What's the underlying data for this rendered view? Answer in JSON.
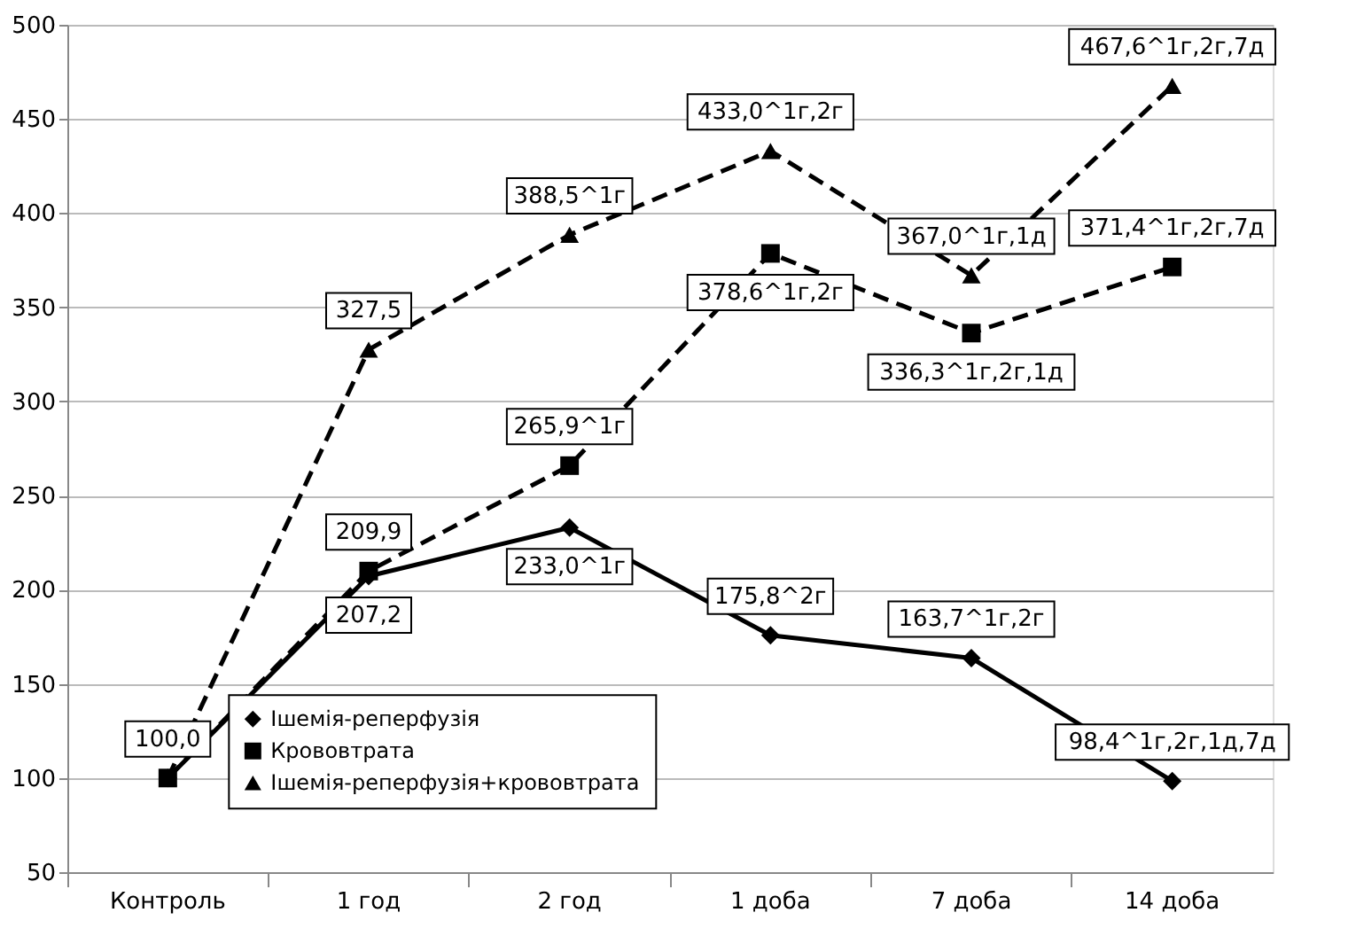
{
  "chart_data": {
    "type": "line",
    "categories": [
      "Контроль",
      "1 год",
      "2 год",
      "1 доба",
      "7 доба",
      "14 доба"
    ],
    "series": [
      {
        "name": "Ішемія-реперфузія",
        "color": "#000000",
        "marker": "diamond",
        "line_style": "solid",
        "values": [
          100.0,
          207.2,
          233.0,
          175.8,
          163.7,
          98.4
        ],
        "value_labels": [
          "100,0",
          "207,2",
          "233,0^1г",
          "175,8^2г",
          "163,7^1г,2г",
          "98,4^1г,2г,1д,7д"
        ]
      },
      {
        "name": "Крововтрата",
        "color": "#000000",
        "marker": "square",
        "line_style": "dashed",
        "values": [
          100.0,
          209.9,
          265.9,
          378.6,
          336.3,
          371.4
        ],
        "value_labels": [
          null,
          "209,9",
          "265,9^1г",
          "378,6^1г,2г",
          "336,3^1г,2г,1д",
          "371,4^1г,2г,7д"
        ]
      },
      {
        "name": "Ішемія-реперфузія+крововтрата",
        "color": "#000000",
        "marker": "triangle",
        "line_style": "dashed",
        "values": [
          100.0,
          327.5,
          388.5,
          433.0,
          367.0,
          467.6
        ],
        "value_labels": [
          null,
          "327,5",
          "388,5^1г",
          "433,0^1г,2г",
          "367,0^1г,1д",
          "467,6^1г,2г,7д"
        ]
      }
    ],
    "ylim": [
      50,
      500
    ],
    "yticks": [
      50,
      100,
      150,
      200,
      250,
      300,
      350,
      400,
      450,
      500
    ],
    "grid": "y",
    "legend": "bottom left"
  }
}
